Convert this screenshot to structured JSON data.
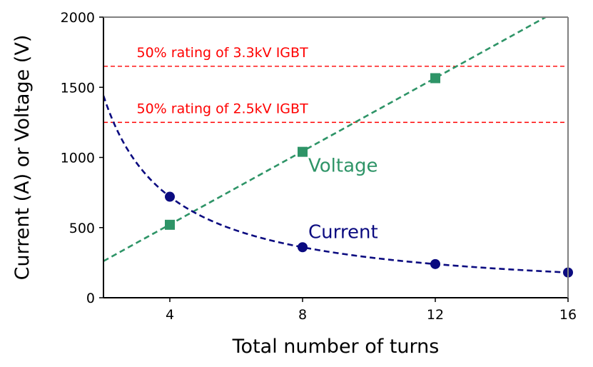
{
  "chart_data": {
    "type": "line",
    "title": "",
    "xlabel": "Total number of turns",
    "ylabel": "Current (A) or Voltage (V)",
    "xlim": [
      2,
      16
    ],
    "ylim": [
      0,
      2000
    ],
    "xticks": [
      4,
      8,
      12,
      16
    ],
    "yticks": [
      0,
      500,
      1000,
      1500,
      2000
    ],
    "series": [
      {
        "name": "Voltage",
        "color": "#2e9467",
        "marker": "square",
        "x": [
          4,
          8,
          12
        ],
        "values": [
          520,
          1040,
          1565
        ],
        "fit": {
          "kind": "linear",
          "slope": 130.5,
          "intercept": 0,
          "x_range": [
            2,
            16
          ]
        }
      },
      {
        "name": "Current",
        "color": "#0b0b80",
        "marker": "circle",
        "x": [
          4,
          8,
          12,
          16
        ],
        "values": [
          720,
          360,
          240,
          180
        ],
        "fit": {
          "kind": "inverse",
          "k": 2880,
          "x_range": [
            2,
            16
          ]
        }
      }
    ],
    "reference_lines": [
      {
        "label": "50% rating of 3.3kV IGBT",
        "y": 1650,
        "color": "#ff0000"
      },
      {
        "label": "50% rating of 2.5kV IGBT",
        "y": 1250,
        "color": "#ff0000"
      }
    ]
  }
}
